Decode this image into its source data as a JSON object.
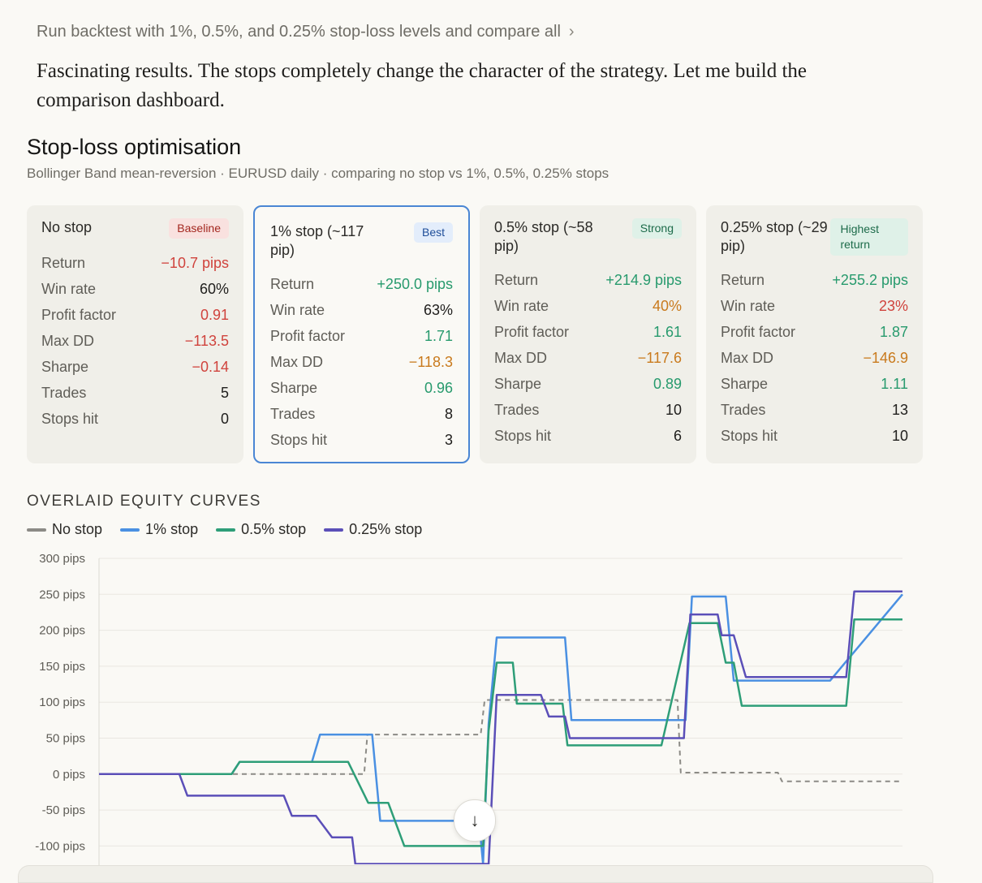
{
  "prompt": {
    "text": "Run backtest with 1%, 0.5%, and 0.25% stop-loss levels and compare all",
    "chevron_icon": "chevron-right-icon"
  },
  "assistant_message": "Fascinating results. The stops completely change the character of the strategy. Let me build the comparison dashboard.",
  "dashboard": {
    "title": "Stop-loss optimisation",
    "subtitle": "Bollinger Band mean-reversion · EURUSD daily · comparing no stop vs 1%, 0.5%, 0.25% stops"
  },
  "cards": [
    {
      "name": "No stop",
      "badge": "Baseline",
      "badge_bg": "#f9e1df",
      "badge_color": "#a3271f",
      "stats": [
        {
          "label": "Return",
          "value": "−10.7 pips",
          "tone": "red"
        },
        {
          "label": "Win rate",
          "value": "60%",
          "tone": ""
        },
        {
          "label": "Profit factor",
          "value": "0.91",
          "tone": "red"
        },
        {
          "label": "Max DD",
          "value": "−113.5",
          "tone": "red"
        },
        {
          "label": "Sharpe",
          "value": "−0.14",
          "tone": "red"
        },
        {
          "label": "Trades",
          "value": "5",
          "tone": ""
        },
        {
          "label": "Stops hit",
          "value": "0",
          "tone": ""
        }
      ]
    },
    {
      "name": "1% stop (~117 pip)",
      "badge": "Best",
      "badge_bg": "#e3edfb",
      "badge_color": "#1f4e99",
      "stats": [
        {
          "label": "Return",
          "value": "+250.0 pips",
          "tone": "green"
        },
        {
          "label": "Win rate",
          "value": "63%",
          "tone": ""
        },
        {
          "label": "Profit factor",
          "value": "1.71",
          "tone": "green"
        },
        {
          "label": "Max DD",
          "value": "−118.3",
          "tone": "amber"
        },
        {
          "label": "Sharpe",
          "value": "0.96",
          "tone": "green"
        },
        {
          "label": "Trades",
          "value": "8",
          "tone": ""
        },
        {
          "label": "Stops hit",
          "value": "3",
          "tone": ""
        }
      ]
    },
    {
      "name": "0.5% stop (~58 pip)",
      "badge": "Strong",
      "badge_bg": "#dff1e8",
      "badge_color": "#1d6b4a",
      "stats": [
        {
          "label": "Return",
          "value": "+214.9 pips",
          "tone": "green"
        },
        {
          "label": "Win rate",
          "value": "40%",
          "tone": "amber"
        },
        {
          "label": "Profit factor",
          "value": "1.61",
          "tone": "green"
        },
        {
          "label": "Max DD",
          "value": "−117.6",
          "tone": "amber"
        },
        {
          "label": "Sharpe",
          "value": "0.89",
          "tone": "green"
        },
        {
          "label": "Trades",
          "value": "10",
          "tone": ""
        },
        {
          "label": "Stops hit",
          "value": "6",
          "tone": ""
        }
      ]
    },
    {
      "name": "0.25% stop (~29 pip)",
      "badge": "Highest return",
      "badge_bg": "#dff1e8",
      "badge_color": "#1d6b4a",
      "stats": [
        {
          "label": "Return",
          "value": "+255.2 pips",
          "tone": "green"
        },
        {
          "label": "Win rate",
          "value": "23%",
          "tone": "red"
        },
        {
          "label": "Profit factor",
          "value": "1.87",
          "tone": "green"
        },
        {
          "label": "Max DD",
          "value": "−146.9",
          "tone": "amber"
        },
        {
          "label": "Sharpe",
          "value": "1.11",
          "tone": "green"
        },
        {
          "label": "Trades",
          "value": "13",
          "tone": ""
        },
        {
          "label": "Stops hit",
          "value": "10",
          "tone": ""
        }
      ]
    }
  ],
  "chart_section_title": "OVERLAID EQUITY CURVES",
  "scroll_button": {
    "icon": "arrow-down-icon",
    "glyph": "↓"
  },
  "chart_data": {
    "type": "line",
    "yticks": [
      "300 pips",
      "250 pips",
      "200 pips",
      "150 pips",
      "100 pips",
      "50 pips",
      "0 pips",
      "-50 pips",
      "-100 pips"
    ],
    "ylim": [
      -125,
      300
    ],
    "xlim": [
      0,
      100
    ],
    "series": [
      {
        "name": "No stop",
        "color": "#8c8b86",
        "dashed": true,
        "x": [
          0,
          18,
          18.4,
          27,
          27.4,
          33,
          33.4,
          47.5,
          48,
          72,
          72.4,
          84.5,
          85,
          100
        ],
        "y": [
          0,
          0,
          0,
          0,
          0,
          0,
          55,
          55,
          103,
          103,
          2,
          2,
          -10,
          -10
        ]
      },
      {
        "name": "1% stop",
        "color": "#4a90e2",
        "dashed": false,
        "x": [
          0,
          16.5,
          17.5,
          26.5,
          27.5,
          30.5,
          31.5,
          34,
          35,
          45.3,
          46,
          47.3,
          47.8,
          48.5,
          49.5,
          58,
          58.8,
          73,
          73.8,
          78,
          79,
          79.7,
          80.5,
          91,
          100
        ],
        "y": [
          0,
          0,
          17,
          17,
          55,
          55,
          55,
          55,
          -65,
          -65,
          -65,
          -65,
          -125,
          70,
          190,
          190,
          75,
          75,
          247,
          247,
          130,
          130,
          130,
          130,
          250
        ]
      },
      {
        "name": "0.5% stop",
        "color": "#2e9e78",
        "dashed": false,
        "x": [
          0,
          16.5,
          17.5,
          24,
          25,
          30,
          31,
          33.5,
          34,
          35,
          36,
          38,
          47.8,
          48.5,
          49.5,
          51.5,
          52,
          57,
          57.4,
          57.7,
          58.3,
          69.5,
          70,
          73.5,
          74,
          77,
          78,
          79,
          80,
          85,
          86,
          93,
          94,
          100
        ],
        "y": [
          0,
          0,
          17,
          17,
          17,
          17,
          17,
          -40,
          -40,
          -40,
          -40,
          -100,
          -100,
          60,
          155,
          155,
          98,
          98,
          98,
          98,
          40,
          40,
          40,
          210,
          210,
          210,
          155,
          155,
          95,
          95,
          95,
          95,
          215,
          215
        ]
      },
      {
        "name": "0.25% stop",
        "color": "#5b4fb8",
        "dashed": false,
        "x": [
          0,
          10,
          11,
          20,
          21,
          23,
          24,
          26.5,
          27,
          29,
          30,
          31.5,
          31.9,
          32.4,
          33.6,
          47.8,
          48.5,
          49.5,
          55,
          56,
          58,
          58.6,
          70,
          70.8,
          72.8,
          73.6,
          77,
          77.5,
          78.5,
          79,
          80.5,
          93,
          94,
          100
        ],
        "y": [
          0,
          0,
          -30,
          -30,
          -30,
          -30,
          -58,
          -58,
          -58,
          -88,
          -88,
          -88,
          -125,
          -125,
          -125,
          -125,
          -125,
          110,
          110,
          80,
          80,
          50,
          50,
          50,
          50,
          222,
          222,
          193,
          193,
          193,
          135,
          135,
          254,
          254
        ]
      }
    ]
  }
}
